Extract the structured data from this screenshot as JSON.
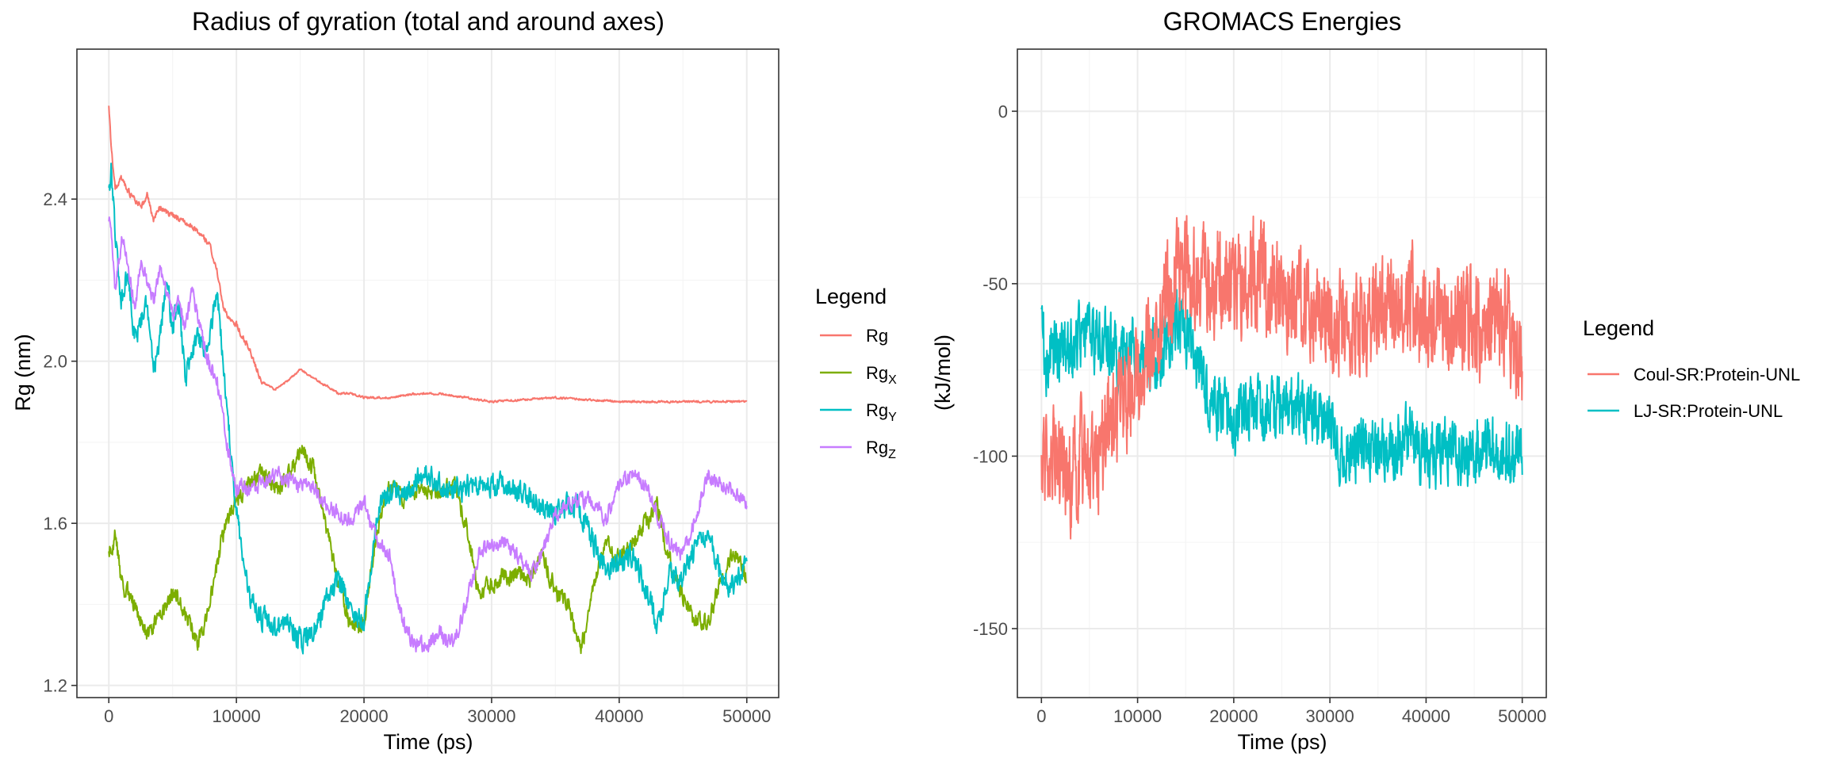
{
  "colors": {
    "rg": "#F8766D",
    "rgx": "#7CAE00",
    "rgy": "#00BFC4",
    "rgz": "#C77CFF",
    "coul": "#F8766D",
    "lj": "#00BFC4",
    "panel_bg": "#ffffff",
    "grid_major": "#EBEBEB",
    "grid_minor": "#F5F5F5",
    "panel_border": "#333333",
    "axis_text": "#4D4D4D"
  },
  "chart_data": [
    {
      "type": "line",
      "title": "Radius of gyration (total and around axes)",
      "xlabel": "Time (ps)",
      "ylabel": "Rg (nm)",
      "xlim": [
        -2500,
        52500
      ],
      "ylim": [
        1.17,
        2.77
      ],
      "x_ticks": [
        0,
        10000,
        20000,
        30000,
        40000,
        50000
      ],
      "x_tick_labels": [
        "0",
        "10000",
        "20000",
        "30000",
        "40000",
        "50000"
      ],
      "y_ticks": [
        1.2,
        1.6,
        2.0,
        2.4
      ],
      "y_tick_labels": [
        "1.2",
        "1.6",
        "2.0",
        "2.4"
      ],
      "legend_title": "Legend",
      "legend_position": "right",
      "legend": [
        {
          "base": "Rg",
          "sub": "",
          "color_key": "rg"
        },
        {
          "base": "Rg",
          "sub": "X",
          "color_key": "rgx"
        },
        {
          "base": "Rg",
          "sub": "Y",
          "color_key": "rgy"
        },
        {
          "base": "Rg",
          "sub": "Z",
          "color_key": "rgz"
        }
      ],
      "series": [
        {
          "name": "Rg",
          "color_key": "rg",
          "noise": 0.012,
          "noise_decay_after": 12000,
          "noise_late": 0.004,
          "x": [
            0,
            200,
            500,
            1000,
            1500,
            2000,
            2500,
            3000,
            3500,
            4000,
            5000,
            6000,
            7000,
            8000,
            8500,
            9000,
            9500,
            10000,
            11000,
            12000,
            13000,
            14000,
            15000,
            16000,
            17000,
            18000,
            19000,
            20000,
            22000,
            24000,
            26000,
            28000,
            30000,
            35000,
            40000,
            45000,
            50000
          ],
          "y": [
            2.63,
            2.52,
            2.43,
            2.45,
            2.42,
            2.4,
            2.38,
            2.41,
            2.35,
            2.38,
            2.36,
            2.34,
            2.32,
            2.28,
            2.22,
            2.13,
            2.1,
            2.09,
            2.03,
            1.95,
            1.93,
            1.95,
            1.98,
            1.96,
            1.94,
            1.92,
            1.92,
            1.91,
            1.91,
            1.92,
            1.92,
            1.91,
            1.9,
            1.91,
            1.9,
            1.9,
            1.9
          ]
        },
        {
          "name": "Rg_X",
          "color_key": "rgx",
          "noise": 0.035,
          "x": [
            0,
            500,
            1000,
            2000,
            3000,
            4000,
            5000,
            6000,
            7000,
            8000,
            9000,
            10000,
            11000,
            12000,
            13000,
            14000,
            15000,
            16000,
            17000,
            18000,
            19000,
            20000,
            21000,
            22000,
            23000,
            24000,
            25000,
            26000,
            27000,
            28000,
            29000,
            30000,
            31000,
            32000,
            33000,
            34000,
            35000,
            36000,
            37000,
            38000,
            39000,
            40000,
            41000,
            42000,
            43000,
            44000,
            45000,
            46000,
            47000,
            48000,
            49000,
            50000
          ],
          "y": [
            1.53,
            1.57,
            1.45,
            1.4,
            1.33,
            1.37,
            1.43,
            1.38,
            1.3,
            1.42,
            1.58,
            1.66,
            1.7,
            1.72,
            1.68,
            1.71,
            1.78,
            1.74,
            1.6,
            1.45,
            1.34,
            1.35,
            1.58,
            1.7,
            1.66,
            1.68,
            1.68,
            1.67,
            1.7,
            1.6,
            1.42,
            1.45,
            1.47,
            1.47,
            1.46,
            1.52,
            1.43,
            1.4,
            1.28,
            1.46,
            1.55,
            1.51,
            1.55,
            1.6,
            1.64,
            1.5,
            1.42,
            1.36,
            1.36,
            1.46,
            1.53,
            1.47
          ]
        },
        {
          "name": "Rg_Y",
          "color_key": "rgy",
          "noise": 0.045,
          "x": [
            0,
            200,
            500,
            1000,
            1500,
            2000,
            2500,
            3000,
            3500,
            4000,
            4500,
            5000,
            5500,
            6000,
            6500,
            7000,
            7500,
            8000,
            8500,
            9000,
            9500,
            10000,
            10500,
            11000,
            12000,
            13000,
            14000,
            15000,
            16000,
            17000,
            18000,
            19000,
            20000,
            21000,
            22000,
            23000,
            24000,
            25000,
            26000,
            27000,
            28000,
            29000,
            30000,
            31000,
            32000,
            33000,
            34000,
            35000,
            36000,
            37000,
            38000,
            39000,
            40000,
            41000,
            42000,
            43000,
            44000,
            45000,
            46000,
            47000,
            48000,
            49000,
            50000
          ],
          "y": [
            2.42,
            2.48,
            2.3,
            2.15,
            2.22,
            2.05,
            2.1,
            2.15,
            1.98,
            2.05,
            2.2,
            2.08,
            2.15,
            1.95,
            2.02,
            2.08,
            2.0,
            2.1,
            2.16,
            1.98,
            1.8,
            1.64,
            1.5,
            1.42,
            1.37,
            1.33,
            1.37,
            1.31,
            1.34,
            1.4,
            1.47,
            1.39,
            1.35,
            1.62,
            1.68,
            1.66,
            1.7,
            1.73,
            1.69,
            1.68,
            1.69,
            1.7,
            1.69,
            1.7,
            1.68,
            1.66,
            1.64,
            1.62,
            1.65,
            1.63,
            1.55,
            1.48,
            1.51,
            1.52,
            1.45,
            1.35,
            1.48,
            1.47,
            1.55,
            1.58,
            1.47,
            1.44,
            1.51
          ]
        },
        {
          "name": "Rg_Z",
          "color_key": "rgz",
          "noise": 0.03,
          "x": [
            0,
            200,
            500,
            1000,
            1500,
            2000,
            2500,
            3000,
            3500,
            4000,
            4500,
            5000,
            5500,
            6000,
            6500,
            7000,
            7500,
            8000,
            8500,
            9000,
            9500,
            10000,
            10500,
            11000,
            12000,
            13000,
            14000,
            15000,
            16000,
            17000,
            18000,
            19000,
            20000,
            21000,
            22000,
            23000,
            24000,
            25000,
            26000,
            27000,
            28000,
            29000,
            30000,
            31000,
            32000,
            33000,
            34000,
            35000,
            36000,
            37000,
            38000,
            39000,
            40000,
            41000,
            42000,
            43000,
            44000,
            45000,
            46000,
            47000,
            48000,
            49000,
            50000
          ],
          "y": [
            2.35,
            2.33,
            2.18,
            2.3,
            2.25,
            2.12,
            2.25,
            2.2,
            2.15,
            2.22,
            2.17,
            2.11,
            2.15,
            2.08,
            2.17,
            2.11,
            2.03,
            1.98,
            1.95,
            1.85,
            1.75,
            1.68,
            1.7,
            1.68,
            1.7,
            1.72,
            1.71,
            1.69,
            1.69,
            1.65,
            1.62,
            1.61,
            1.65,
            1.56,
            1.52,
            1.36,
            1.3,
            1.3,
            1.33,
            1.3,
            1.4,
            1.53,
            1.55,
            1.55,
            1.52,
            1.47,
            1.53,
            1.62,
            1.65,
            1.66,
            1.65,
            1.61,
            1.7,
            1.72,
            1.7,
            1.62,
            1.55,
            1.52,
            1.62,
            1.72,
            1.7,
            1.68,
            1.65
          ]
        }
      ]
    },
    {
      "type": "line",
      "title": "GROMACS Energies",
      "xlabel": "Time (ps)",
      "ylabel": "(kJ/mol)",
      "xlim": [
        -2500,
        52500
      ],
      "ylim": [
        -170,
        18
      ],
      "x_ticks": [
        0,
        10000,
        20000,
        30000,
        40000,
        50000
      ],
      "x_tick_labels": [
        "0",
        "10000",
        "20000",
        "30000",
        "40000",
        "50000"
      ],
      "y_ticks": [
        -150,
        -100,
        -50,
        0
      ],
      "y_tick_labels": [
        "-150",
        "-100",
        "-50",
        "0"
      ],
      "legend_title": "Legend",
      "legend_position": "right",
      "legend": [
        {
          "base": "Coul-SR:Protein-UNL",
          "sub": "",
          "color_key": "coul"
        },
        {
          "base": "LJ-SR:Protein-UNL",
          "sub": "",
          "color_key": "lj"
        }
      ],
      "series": [
        {
          "name": "LJ-SR:Protein-UNL",
          "color_key": "lj",
          "noise": 14,
          "x": [
            0,
            500,
            1000,
            2000,
            3000,
            4000,
            5000,
            6000,
            7000,
            8000,
            9000,
            10000,
            11000,
            12000,
            13000,
            14000,
            15000,
            16000,
            17000,
            18000,
            19000,
            20000,
            22000,
            24000,
            26000,
            28000,
            30000,
            31000,
            32000,
            34000,
            36000,
            38000,
            40000,
            42000,
            44000,
            46000,
            48000,
            50000
          ],
          "y": [
            -60,
            -72,
            -70,
            -68,
            -70,
            -65,
            -68,
            -65,
            -68,
            -70,
            -68,
            -68,
            -70,
            -72,
            -68,
            -60,
            -65,
            -72,
            -78,
            -85,
            -88,
            -90,
            -88,
            -87,
            -85,
            -87,
            -90,
            -100,
            -98,
            -97,
            -98,
            -95,
            -100,
            -98,
            -100,
            -97,
            -100,
            -96
          ]
        },
        {
          "name": "Coul-SR:Protein-UNL",
          "color_key": "coul",
          "noise": 24,
          "x": [
            0,
            500,
            1000,
            2000,
            3000,
            4000,
            5000,
            6000,
            7000,
            8000,
            9000,
            10000,
            11000,
            12000,
            13000,
            14000,
            15000,
            16000,
            17000,
            18000,
            19000,
            20000,
            22000,
            24000,
            26000,
            28000,
            30000,
            32000,
            34000,
            36000,
            38000,
            40000,
            42000,
            44000,
            46000,
            48000,
            50000
          ],
          "y": [
            -108,
            -105,
            -100,
            -100,
            -105,
            -102,
            -100,
            -98,
            -95,
            -88,
            -80,
            -75,
            -70,
            -62,
            -55,
            -50,
            -48,
            -50,
            -52,
            -50,
            -48,
            -50,
            -48,
            -50,
            -55,
            -55,
            -60,
            -62,
            -60,
            -58,
            -55,
            -62,
            -60,
            -58,
            -62,
            -60,
            -75
          ]
        }
      ]
    }
  ]
}
